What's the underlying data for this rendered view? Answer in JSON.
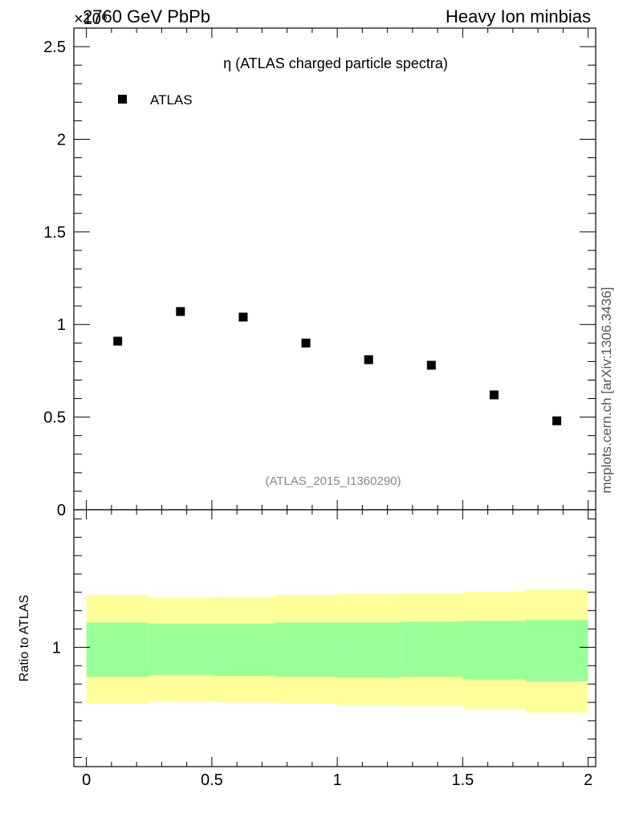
{
  "header": {
    "left": "2760 GeV PbPb",
    "right": "Heavy Ion minbias",
    "exponent": "×10⁶"
  },
  "side_label": "mcplots.cern.ch [arXiv:1306.3436]",
  "colors": {
    "band_inner": "#99ff99",
    "band_outer": "#ffff99",
    "marker": "#000000",
    "watermark": "#888888"
  },
  "chart_data": [
    {
      "type": "scatter",
      "title": "η (ATLAS charged particle spectra)",
      "watermark": "(ATLAS_2015_I1360290)",
      "legend": {
        "entries": [
          "ATLAS"
        ],
        "position": "top-left"
      },
      "ylim": [
        0,
        2.6
      ],
      "yticks": [
        0,
        0.5,
        1,
        1.5,
        2,
        2.5
      ],
      "ytick_labels": [
        "0",
        "0.5",
        "1",
        "1.5",
        "2",
        "2.5"
      ],
      "xlim": [
        -0.05,
        2.03
      ],
      "series": [
        {
          "name": "ATLAS",
          "x": [
            0.125,
            0.375,
            0.625,
            0.875,
            1.125,
            1.375,
            1.625,
            1.875
          ],
          "y": [
            0.91,
            1.07,
            1.04,
            0.9,
            0.81,
            0.78,
            0.62,
            0.48
          ]
        }
      ]
    },
    {
      "type": "area",
      "ylabel": "Ratio to ATLAS",
      "ylim": [
        0.35,
        1.75
      ],
      "yticks": [
        1
      ],
      "ytick_labels": [
        "1"
      ],
      "xlim": [
        -0.05,
        2.03
      ],
      "xticks": [
        0,
        0.5,
        1,
        1.5,
        2
      ],
      "xtick_labels": [
        "0",
        "0.5",
        "1",
        "1.5",
        "2"
      ],
      "bins": [
        0,
        0.25,
        0.5,
        0.75,
        1.0,
        1.25,
        1.5,
        1.75,
        2.0
      ],
      "inner_band": {
        "low": [
          0.84,
          0.85,
          0.845,
          0.84,
          0.835,
          0.84,
          0.825,
          0.815
        ],
        "high": [
          1.135,
          1.13,
          1.13,
          1.135,
          1.135,
          1.14,
          1.145,
          1.15
        ]
      },
      "outer_band": {
        "low": [
          0.695,
          0.705,
          0.7,
          0.695,
          0.685,
          0.68,
          0.665,
          0.645
        ],
        "high": [
          1.285,
          1.27,
          1.275,
          1.285,
          1.29,
          1.295,
          1.305,
          1.315
        ]
      }
    }
  ]
}
